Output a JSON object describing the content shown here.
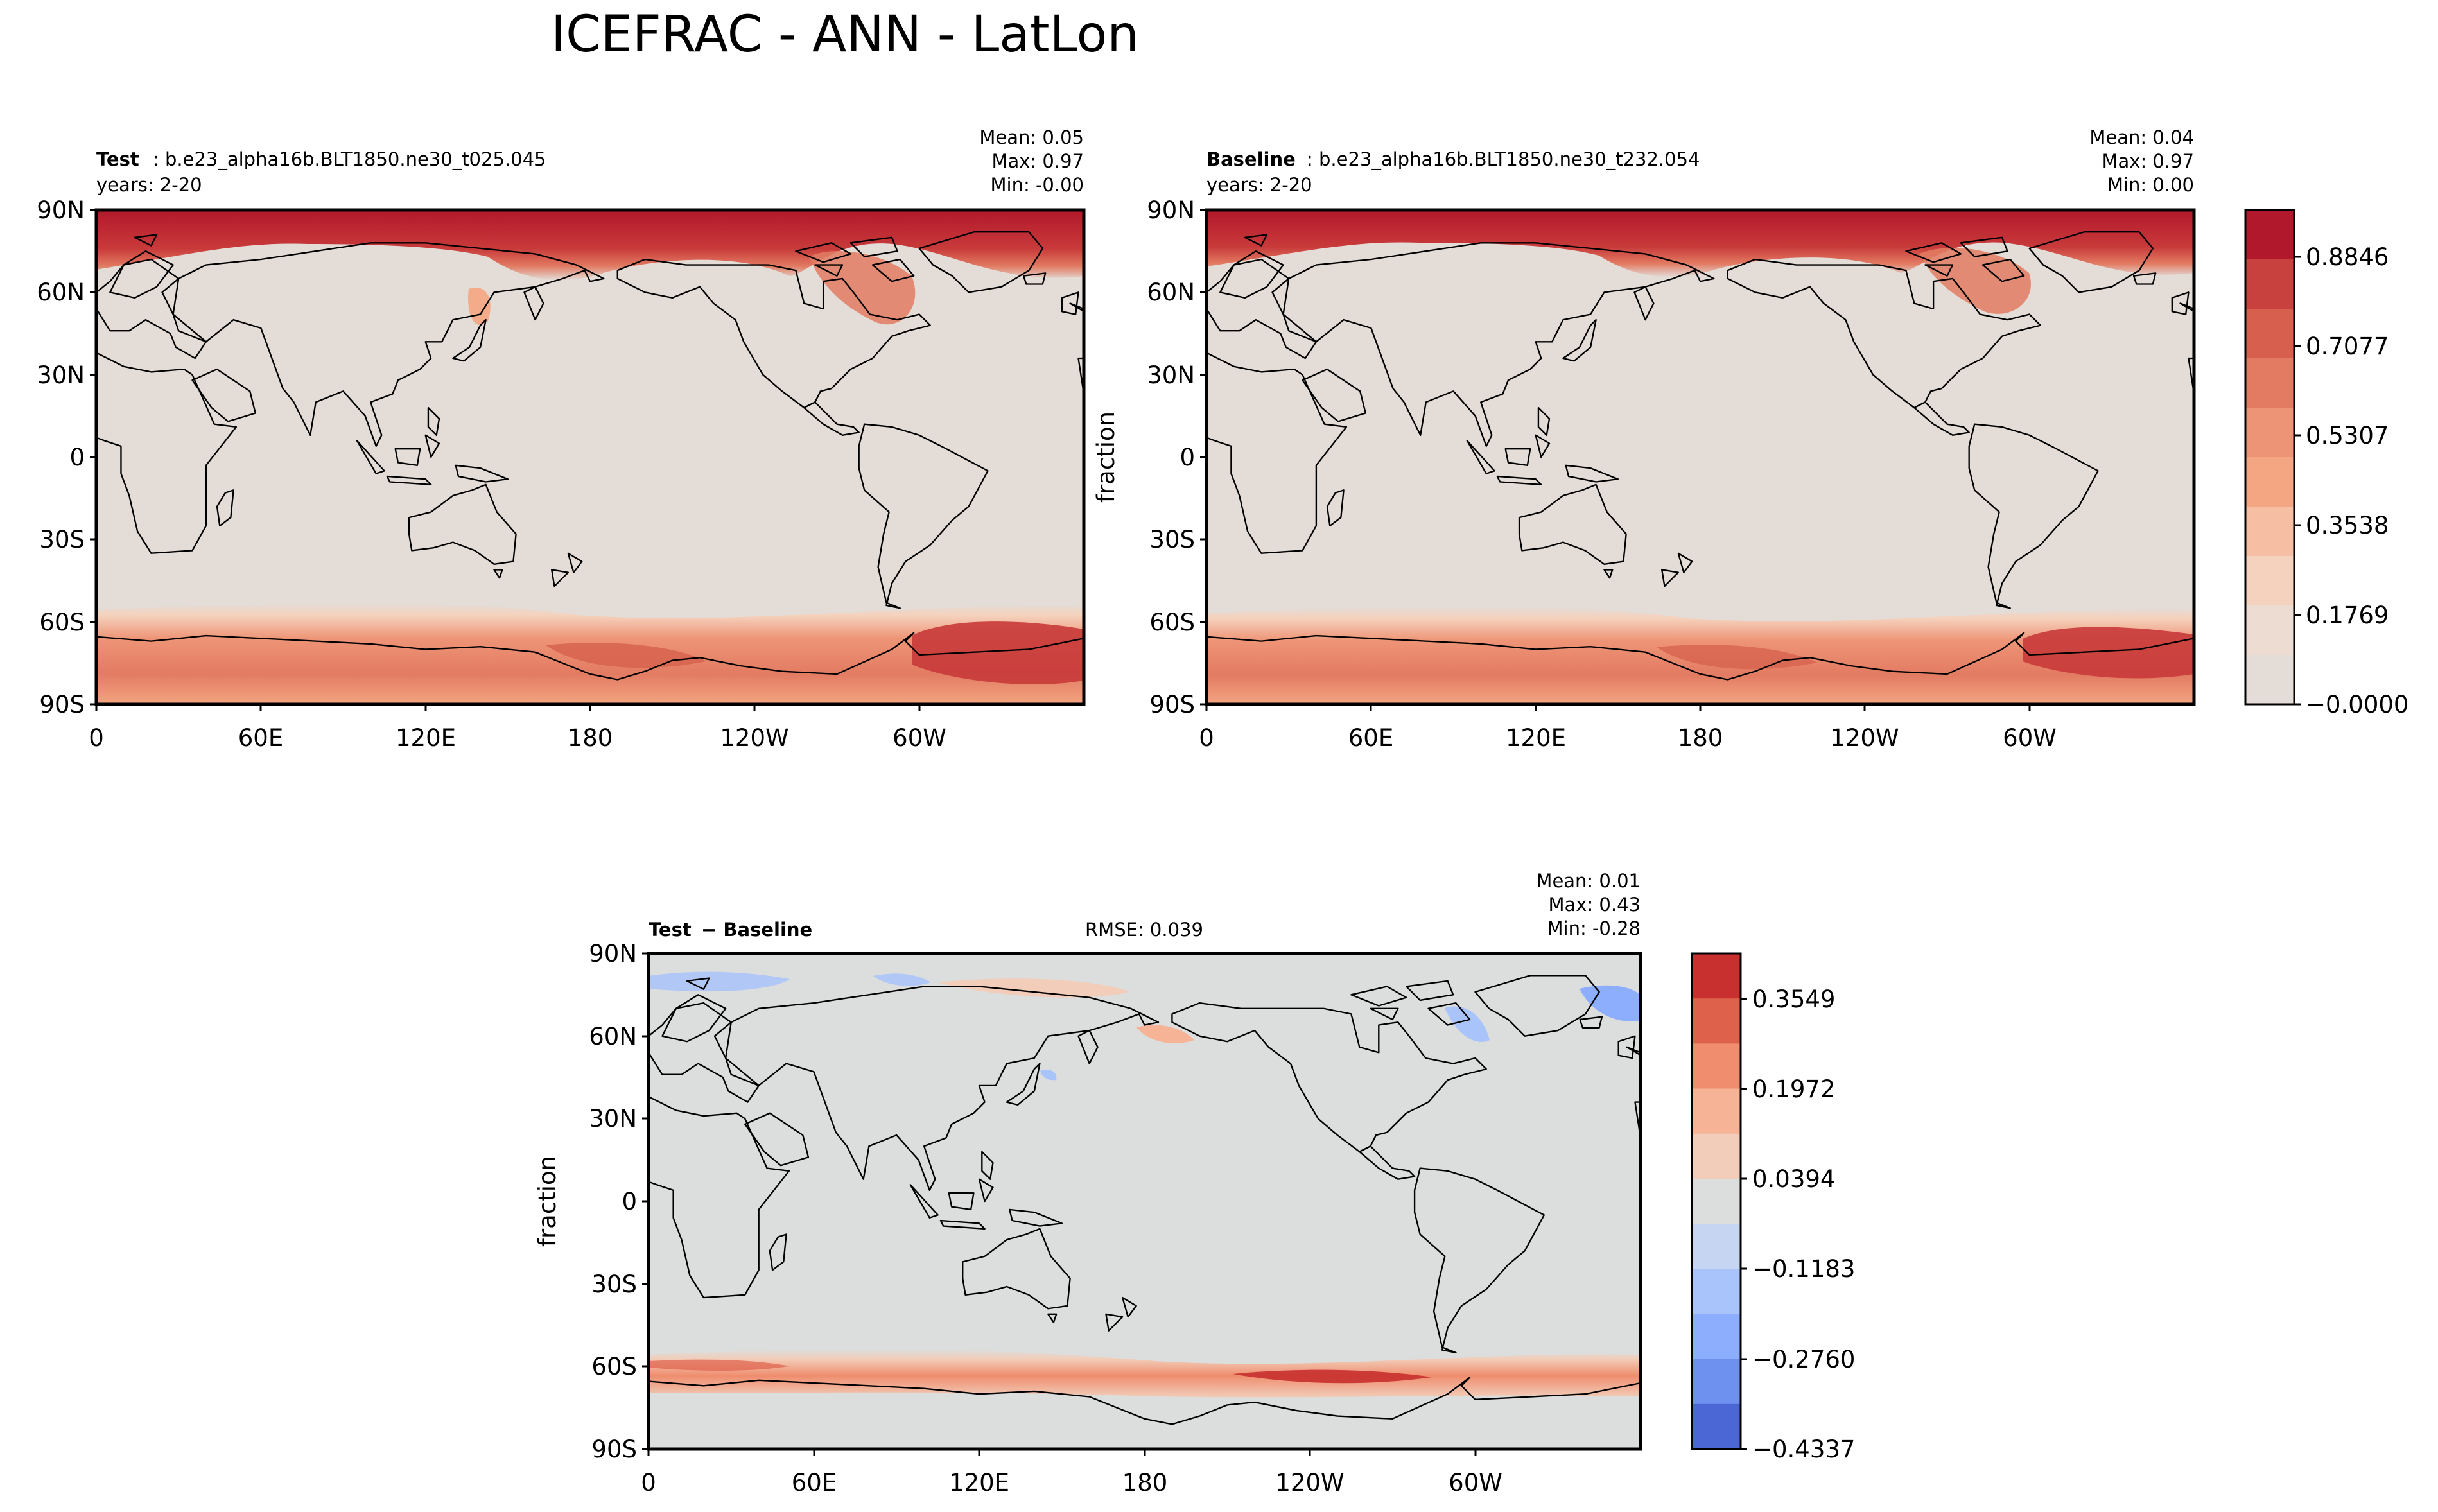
{
  "figure_title": "ICEFRAC - ANN - LatLon",
  "panels": {
    "test": {
      "label_bold": "Test",
      "label_rest": ": b.e23_alpha16b.BLT1850.ne30_t025.045",
      "years": "years: 2-20",
      "mean": "Mean:  0.05",
      "max": "Max:  0.97",
      "min": "Min: -0.00"
    },
    "baseline": {
      "label_bold": "Baseline",
      "label_rest": ": b.e23_alpha16b.BLT1850.ne30_t232.054",
      "years": "years: 2-20",
      "mean": "Mean:  0.04",
      "max": "Max:  0.97",
      "min": "Min:  0.00",
      "ylabel": "fraction"
    },
    "diff": {
      "label_bold": "Test",
      "label_rest": " − Baseline",
      "rmse": "RMSE: 0.039",
      "mean": "Mean:  0.01",
      "max": "Max:  0.43",
      "min": "Min: -0.28",
      "ylabel": "fraction"
    }
  },
  "axes": {
    "lat_ticks": [
      "90N",
      "60N",
      "30N",
      "0",
      "30S",
      "60S",
      "90S"
    ],
    "lon_ticks": [
      "0",
      "60E",
      "120E",
      "180",
      "120W",
      "60W"
    ]
  },
  "colorbars": {
    "main": {
      "labels": [
        "0.8846",
        "0.7077",
        "0.5307",
        "0.3538",
        "0.1769",
        "−0.0000"
      ],
      "colors_top_to_bottom": [
        "#b2182b",
        "#c8413e",
        "#d6604d",
        "#e27b62",
        "#ee9476",
        "#f4a582",
        "#f6bea3",
        "#f5d2bd",
        "#eddcd2",
        "#e3dcd7"
      ]
    },
    "diff": {
      "labels": [
        "0.3549",
        "0.1972",
        "0.0394",
        "−0.1183",
        "−0.2760",
        "−0.4337"
      ],
      "colors_top_to_bottom": [
        "#c8302f",
        "#de614c",
        "#ef8d6e",
        "#f6b396",
        "#f2cdb9",
        "#dcdddd",
        "#c6d6f2",
        "#a9c4fb",
        "#8caefc",
        "#6e90ee",
        "#4b67d6"
      ]
    }
  },
  "chart_data": [
    {
      "type": "heatmap",
      "title": "Test: b.e23_alpha16b.BLT1850.ne30_t025.045",
      "variable": "ICEFRAC",
      "season": "ANN",
      "years": "2-20",
      "stats": {
        "mean": 0.05,
        "max": 0.97,
        "min": -0.0
      },
      "x_ticks": [
        "0",
        "60E",
        "120E",
        "180",
        "120W",
        "60W"
      ],
      "y_ticks": [
        "90N",
        "60N",
        "30N",
        "0",
        "30S",
        "60S",
        "90S"
      ],
      "xlim": [
        0,
        360
      ],
      "ylim": [
        -90,
        90
      ],
      "colorbar_ticks": [
        0.8846,
        0.7077,
        0.5307,
        0.3538,
        0.1769,
        -0.0
      ],
      "colormap": "reds"
    },
    {
      "type": "heatmap",
      "title": "Baseline: b.e23_alpha16b.BLT1850.ne30_t232.054",
      "variable": "ICEFRAC",
      "season": "ANN",
      "years": "2-20",
      "ylabel": "fraction",
      "stats": {
        "mean": 0.04,
        "max": 0.97,
        "min": 0.0
      },
      "x_ticks": [
        "0",
        "60E",
        "120E",
        "180",
        "120W",
        "60W"
      ],
      "y_ticks": [
        "90N",
        "60N",
        "30N",
        "0",
        "30S",
        "60S",
        "90S"
      ],
      "xlim": [
        0,
        360
      ],
      "ylim": [
        -90,
        90
      ],
      "colorbar_ticks": [
        0.8846,
        0.7077,
        0.5307,
        0.3538,
        0.1769,
        -0.0
      ],
      "colormap": "reds"
    },
    {
      "type": "heatmap",
      "title": "Test − Baseline",
      "ylabel": "fraction",
      "stats": {
        "mean": 0.01,
        "max": 0.43,
        "min": -0.28,
        "rmse": 0.039
      },
      "x_ticks": [
        "0",
        "60E",
        "120E",
        "180",
        "120W",
        "60W"
      ],
      "y_ticks": [
        "90N",
        "60N",
        "30N",
        "0",
        "30S",
        "60S",
        "90S"
      ],
      "xlim": [
        0,
        360
      ],
      "ylim": [
        -90,
        90
      ],
      "colorbar_ticks": [
        0.3549,
        0.1972,
        0.0394,
        -0.1183,
        -0.276,
        -0.4337
      ],
      "colormap": "diverging blue-red"
    }
  ]
}
